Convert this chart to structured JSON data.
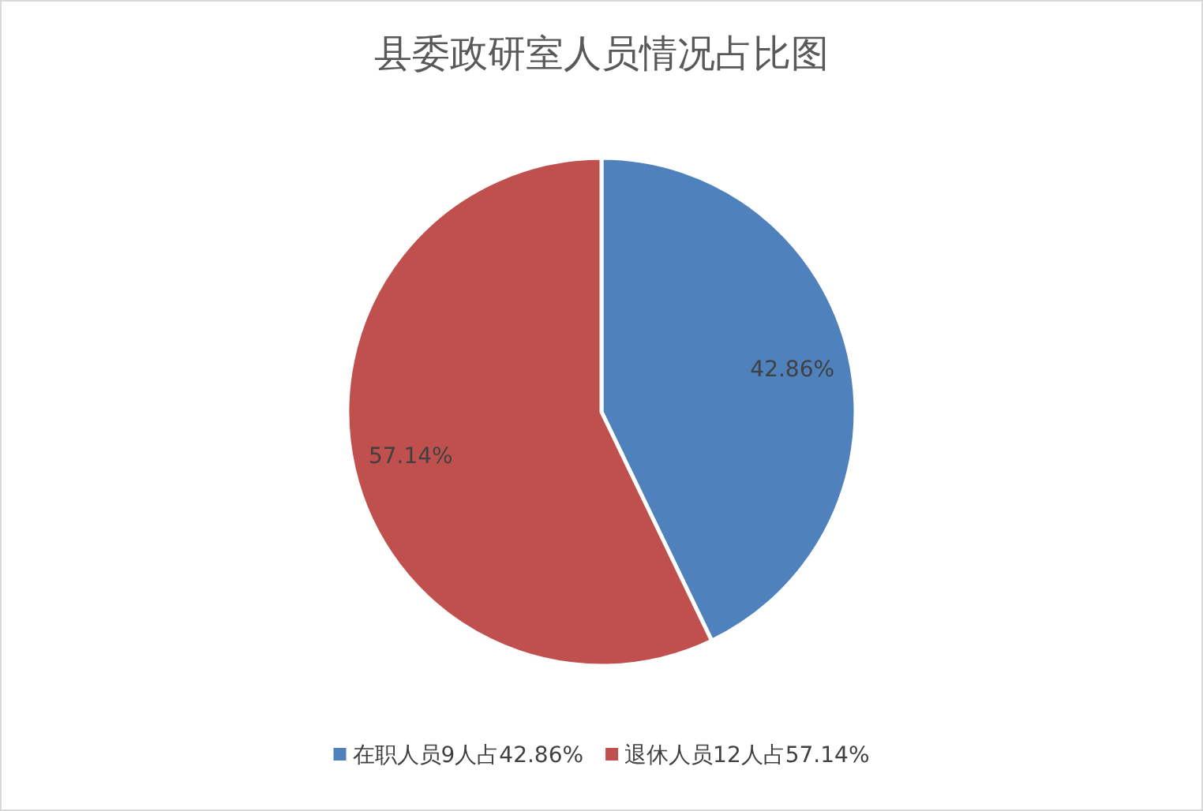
{
  "chart_data": {
    "type": "pie",
    "title": "县委政研室人员情况占比图",
    "categories": [
      "在职人员9人占42.86%",
      "退休人员12人占57.14%"
    ],
    "values": [
      42.86,
      57.14
    ],
    "colors": [
      "#4f81bd",
      "#c0504d"
    ],
    "value_labels": [
      "42.86%",
      "57.14%"
    ],
    "legend": "bottom"
  }
}
